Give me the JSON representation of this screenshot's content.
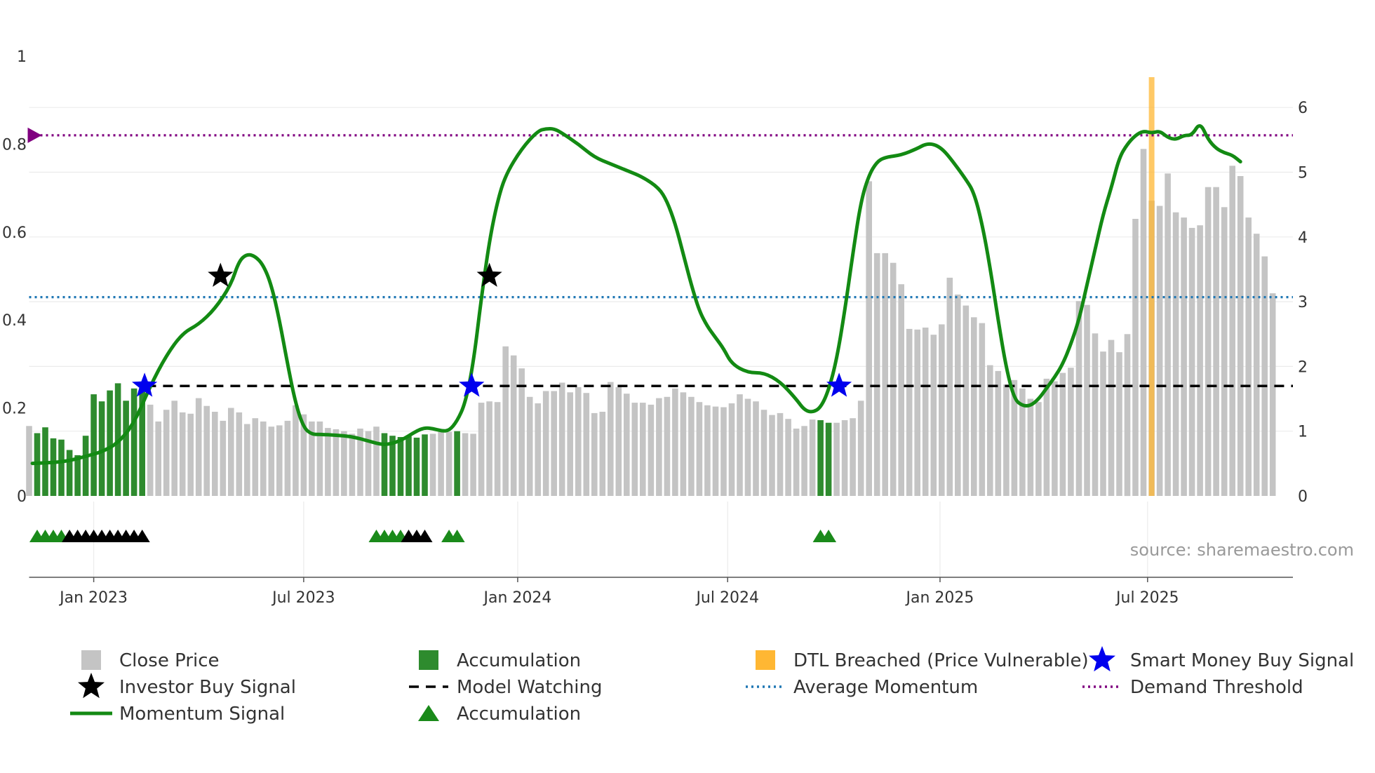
{
  "chart_data": {
    "type": "bar",
    "source": "source: sharemaestro.com",
    "colors": {
      "close_price": "#c4c4c4",
      "accumulation": "#2e8b2e",
      "accumulation_dark": "#1a8a1a",
      "dtl": "#ffb733",
      "momentum": "#138a13",
      "model_watching": "#000000",
      "average_momentum": "#1f77b4",
      "demand_threshold": "#800080",
      "smart_money": "#0000ee",
      "investor": "#000000",
      "grid": "#ebebeb",
      "axis": "#555555"
    },
    "x_axis": {
      "ticks": [
        {
          "label": "Jan 2023",
          "week": 12
        },
        {
          "label": "Jul 2023",
          "week": 38
        },
        {
          "label": "Jan 2024",
          "week": 64.5
        },
        {
          "label": "Jul 2024",
          "week": 90.5
        },
        {
          "label": "Jan 2025",
          "week": 116.8
        },
        {
          "label": "Jul 2025",
          "week": 142.5
        }
      ],
      "range": [
        4.0,
        160.5
      ]
    },
    "y_left": {
      "ticks": [
        "0",
        "0.2",
        "0.4",
        "0.6",
        "0.8",
        "1"
      ],
      "tick_values": [
        0,
        0.2,
        0.4,
        0.6,
        0.8,
        1.0
      ],
      "range": [
        0,
        1.0
      ]
    },
    "y_right": {
      "ticks": [
        "0",
        "1",
        "2",
        "3",
        "4",
        "5",
        "6"
      ],
      "tick_values": [
        0,
        1,
        2,
        3,
        4,
        5,
        6
      ],
      "range": [
        0,
        6
      ]
    },
    "close_price": [
      1.08,
      0.97,
      1.06,
      0.89,
      0.87,
      0.71,
      0.63,
      0.93,
      1.57,
      1.46,
      1.63,
      1.74,
      1.47,
      1.66,
      1.62,
      1.41,
      1.15,
      1.33,
      1.47,
      1.29,
      1.27,
      1.51,
      1.39,
      1.3,
      1.16,
      1.36,
      1.29,
      1.11,
      1.2,
      1.15,
      1.07,
      1.09,
      1.16,
      1.4,
      1.26,
      1.15,
      1.15,
      1.05,
      1.03,
      1.0,
      0.96,
      1.04,
      1.0,
      1.07,
      0.97,
      0.93,
      0.91,
      0.92,
      0.9,
      0.95,
      0.96,
      0.99,
      0.99,
      1.0,
      0.97,
      0.96,
      1.44,
      1.46,
      1.45,
      2.31,
      2.17,
      1.97,
      1.53,
      1.43,
      1.62,
      1.62,
      1.75,
      1.6,
      1.68,
      1.59,
      1.28,
      1.3,
      1.76,
      1.68,
      1.58,
      1.44,
      1.44,
      1.41,
      1.51,
      1.53,
      1.66,
      1.6,
      1.53,
      1.45,
      1.4,
      1.38,
      1.37,
      1.43,
      1.57,
      1.5,
      1.46,
      1.33,
      1.25,
      1.28,
      1.19,
      1.04,
      1.08,
      1.18,
      1.17,
      1.13,
      1.13,
      1.17,
      1.2,
      1.47,
      4.86,
      3.75,
      3.75,
      3.6,
      3.27,
      2.58,
      2.57,
      2.6,
      2.49,
      2.65,
      3.37,
      3.11,
      2.94,
      2.76,
      2.67,
      2.02,
      1.93,
      1.72,
      1.79,
      1.66,
      1.5,
      1.45,
      1.81,
      1.77,
      1.9,
      1.98,
      3.01,
      2.95,
      2.51,
      2.23,
      2.41,
      2.22,
      2.5,
      4.28,
      5.36,
      4.56,
      4.48,
      4.98,
      4.38,
      4.3,
      4.14,
      4.18,
      4.77,
      4.77,
      4.46,
      5.1,
      4.94,
      4.3,
      4.05,
      3.7,
      3.13
    ],
    "accumulation_weeks": [
      5,
      6,
      7,
      8,
      9,
      10,
      11,
      12,
      13,
      14,
      15,
      16,
      17,
      18,
      48,
      49,
      50,
      51,
      52,
      53,
      57,
      102,
      103
    ],
    "dtl_week": 143,
    "momentum": [
      {
        "w": 4.4,
        "v": 0.074
      },
      {
        "w": 7,
        "v": 0.076
      },
      {
        "w": 9,
        "v": 0.08
      },
      {
        "w": 11,
        "v": 0.09
      },
      {
        "w": 13,
        "v": 0.1
      },
      {
        "w": 15,
        "v": 0.12
      },
      {
        "w": 17,
        "v": 0.165
      },
      {
        "w": 19,
        "v": 0.25
      },
      {
        "w": 21,
        "v": 0.32
      },
      {
        "w": 23,
        "v": 0.37
      },
      {
        "w": 25,
        "v": 0.39
      },
      {
        "w": 27,
        "v": 0.425
      },
      {
        "w": 29,
        "v": 0.48
      },
      {
        "w": 30,
        "v": 0.535
      },
      {
        "w": 31,
        "v": 0.55
      },
      {
        "w": 32,
        "v": 0.545
      },
      {
        "w": 33,
        "v": 0.525
      },
      {
        "w": 34,
        "v": 0.48
      },
      {
        "w": 35,
        "v": 0.4
      },
      {
        "w": 36,
        "v": 0.3
      },
      {
        "w": 37,
        "v": 0.21
      },
      {
        "w": 38,
        "v": 0.155
      },
      {
        "w": 39,
        "v": 0.14
      },
      {
        "w": 40,
        "v": 0.14
      },
      {
        "w": 42,
        "v": 0.138
      },
      {
        "w": 44,
        "v": 0.135
      },
      {
        "w": 46,
        "v": 0.125
      },
      {
        "w": 48,
        "v": 0.115
      },
      {
        "w": 50,
        "v": 0.125
      },
      {
        "w": 52,
        "v": 0.148
      },
      {
        "w": 53,
        "v": 0.155
      },
      {
        "w": 54,
        "v": 0.153
      },
      {
        "w": 55,
        "v": 0.148
      },
      {
        "w": 56,
        "v": 0.148
      },
      {
        "w": 57,
        "v": 0.17
      },
      {
        "w": 58,
        "v": 0.21
      },
      {
        "w": 59,
        "v": 0.3
      },
      {
        "w": 60,
        "v": 0.45
      },
      {
        "w": 61,
        "v": 0.58
      },
      {
        "w": 62,
        "v": 0.67
      },
      {
        "w": 63,
        "v": 0.73
      },
      {
        "w": 65,
        "v": 0.79
      },
      {
        "w": 67,
        "v": 0.83
      },
      {
        "w": 68,
        "v": 0.835
      },
      {
        "w": 69,
        "v": 0.835
      },
      {
        "w": 70,
        "v": 0.825
      },
      {
        "w": 72,
        "v": 0.8
      },
      {
        "w": 74,
        "v": 0.77
      },
      {
        "w": 76,
        "v": 0.755
      },
      {
        "w": 78,
        "v": 0.74
      },
      {
        "w": 80,
        "v": 0.725
      },
      {
        "w": 82,
        "v": 0.7
      },
      {
        "w": 83,
        "v": 0.67
      },
      {
        "w": 84,
        "v": 0.62
      },
      {
        "w": 85,
        "v": 0.55
      },
      {
        "w": 86,
        "v": 0.48
      },
      {
        "w": 87,
        "v": 0.42
      },
      {
        "w": 88,
        "v": 0.385
      },
      {
        "w": 89,
        "v": 0.36
      },
      {
        "w": 90,
        "v": 0.335
      },
      {
        "w": 91,
        "v": 0.3
      },
      {
        "w": 93,
        "v": 0.28
      },
      {
        "w": 95,
        "v": 0.28
      },
      {
        "w": 97,
        "v": 0.26
      },
      {
        "w": 99,
        "v": 0.22
      },
      {
        "w": 100,
        "v": 0.195
      },
      {
        "w": 101,
        "v": 0.19
      },
      {
        "w": 102,
        "v": 0.2
      },
      {
        "w": 103,
        "v": 0.24
      },
      {
        "w": 104,
        "v": 0.31
      },
      {
        "w": 105,
        "v": 0.42
      },
      {
        "w": 106,
        "v": 0.55
      },
      {
        "w": 107,
        "v": 0.67
      },
      {
        "w": 108,
        "v": 0.73
      },
      {
        "w": 109,
        "v": 0.76
      },
      {
        "w": 110,
        "v": 0.77
      },
      {
        "w": 112,
        "v": 0.775
      },
      {
        "w": 114,
        "v": 0.79
      },
      {
        "w": 115,
        "v": 0.8
      },
      {
        "w": 116,
        "v": 0.8
      },
      {
        "w": 117,
        "v": 0.79
      },
      {
        "w": 118,
        "v": 0.77
      },
      {
        "w": 120,
        "v": 0.72
      },
      {
        "w": 121,
        "v": 0.69
      },
      {
        "w": 122,
        "v": 0.62
      },
      {
        "w": 123,
        "v": 0.52
      },
      {
        "w": 124,
        "v": 0.4
      },
      {
        "w": 125,
        "v": 0.29
      },
      {
        "w": 126,
        "v": 0.22
      },
      {
        "w": 127,
        "v": 0.205
      },
      {
        "w": 128,
        "v": 0.205
      },
      {
        "w": 129,
        "v": 0.22
      },
      {
        "w": 130,
        "v": 0.245
      },
      {
        "w": 131,
        "v": 0.27
      },
      {
        "w": 132,
        "v": 0.3
      },
      {
        "w": 133,
        "v": 0.345
      },
      {
        "w": 134,
        "v": 0.4
      },
      {
        "w": 135,
        "v": 0.48
      },
      {
        "w": 136,
        "v": 0.56
      },
      {
        "w": 137,
        "v": 0.64
      },
      {
        "w": 138,
        "v": 0.7
      },
      {
        "w": 139,
        "v": 0.77
      },
      {
        "w": 140,
        "v": 0.8
      },
      {
        "w": 141,
        "v": 0.82
      },
      {
        "w": 142,
        "v": 0.83
      },
      {
        "w": 143,
        "v": 0.825
      },
      {
        "w": 144,
        "v": 0.83
      },
      {
        "w": 145,
        "v": 0.815
      },
      {
        "w": 146,
        "v": 0.81
      },
      {
        "w": 147,
        "v": 0.82
      },
      {
        "w": 148,
        "v": 0.82
      },
      {
        "w": 149,
        "v": 0.85
      },
      {
        "w": 150,
        "v": 0.81
      },
      {
        "w": 151,
        "v": 0.79
      },
      {
        "w": 152,
        "v": 0.78
      },
      {
        "w": 153,
        "v": 0.775
      },
      {
        "w": 154,
        "v": 0.76
      }
    ],
    "model_watching_value": 0.25,
    "average_momentum_value": 0.452,
    "demand_threshold_value": 0.82,
    "smart_money_signals": [
      {
        "week": 18.3,
        "value": 0.25
      },
      {
        "week": 58.8,
        "value": 0.25
      },
      {
        "week": 104.3,
        "value": 0.25
      }
    ],
    "investor_signals": [
      {
        "week": 27.7,
        "value": 0.5
      },
      {
        "week": 61,
        "value": 0.5
      }
    ],
    "marker_row": {
      "green_triangles": [
        5,
        6,
        7,
        8,
        47,
        48,
        49,
        50,
        56,
        57,
        102,
        103
      ],
      "black_triangles": [
        9,
        10,
        11,
        12,
        13,
        14,
        15,
        16,
        17,
        18,
        51,
        52,
        53
      ]
    },
    "legend": [
      {
        "label": "Close Price",
        "symbol": "square-grey"
      },
      {
        "label": "Accumulation",
        "symbol": "square-green"
      },
      {
        "label": "DTL Breached (Price Vulnerable)",
        "symbol": "square-orange"
      },
      {
        "label": "Smart Money Buy Signal",
        "symbol": "star-blue"
      },
      {
        "label": "Investor Buy Signal",
        "symbol": "star-black"
      },
      {
        "label": "Model Watching",
        "symbol": "dash-black"
      },
      {
        "label": "Average Momentum",
        "symbol": "dot-blue"
      },
      {
        "label": "Demand Threshold",
        "symbol": "dot-purple"
      },
      {
        "label": "Momentum Signal",
        "symbol": "line-green"
      },
      {
        "label": "Accumulation",
        "symbol": "triangle-green"
      }
    ]
  }
}
